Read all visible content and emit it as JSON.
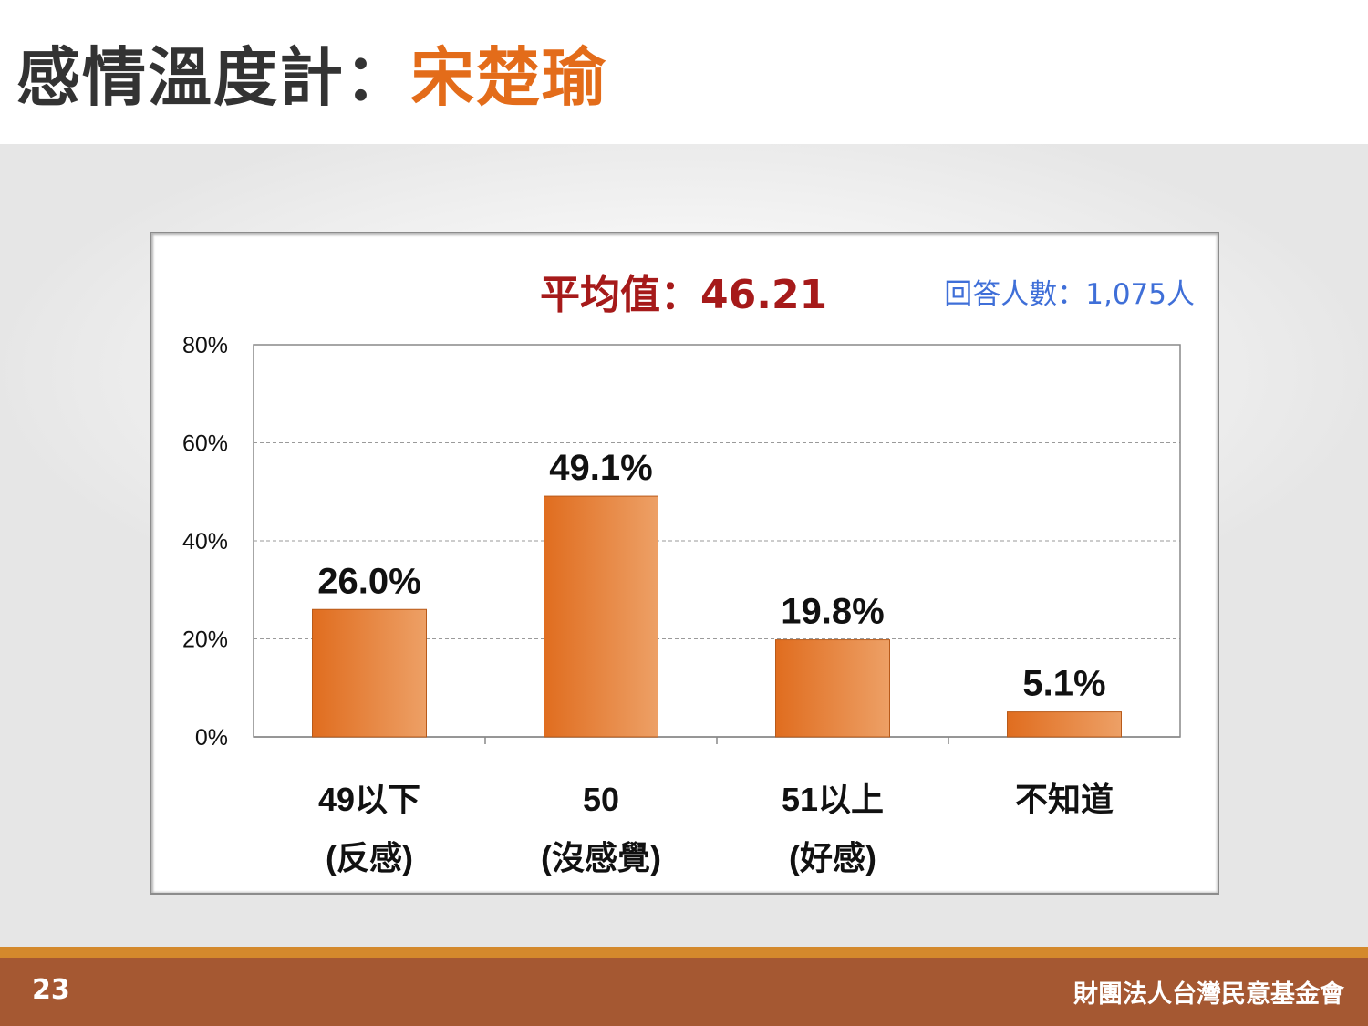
{
  "slide": {
    "title_prefix": "感情溫度計：",
    "title_name": "宋楚瑜",
    "page_number": "23",
    "organization": "財團法人台灣民意基金會"
  },
  "chart_data": {
    "type": "bar",
    "subtitle": "平均值：46.21",
    "sample_note": "回答人數：1,075人",
    "categories": [
      {
        "line1": "49以下",
        "line2": "(反感)"
      },
      {
        "line1": "50",
        "line2": "(沒感覺)"
      },
      {
        "line1": "51以上",
        "line2": "(好感)"
      },
      {
        "line1": "不知道",
        "line2": ""
      }
    ],
    "values": [
      26.0,
      49.1,
      19.8,
      5.1
    ],
    "value_labels": [
      "26.0%",
      "49.1%",
      "19.8%",
      "5.1%"
    ],
    "ylim": [
      0,
      80
    ],
    "yticks": [
      0,
      20,
      40,
      60,
      80
    ],
    "ytick_labels": [
      "0%",
      "20%",
      "40%",
      "60%",
      "80%"
    ],
    "grid": true,
    "bar_color": "#e36c1a"
  }
}
